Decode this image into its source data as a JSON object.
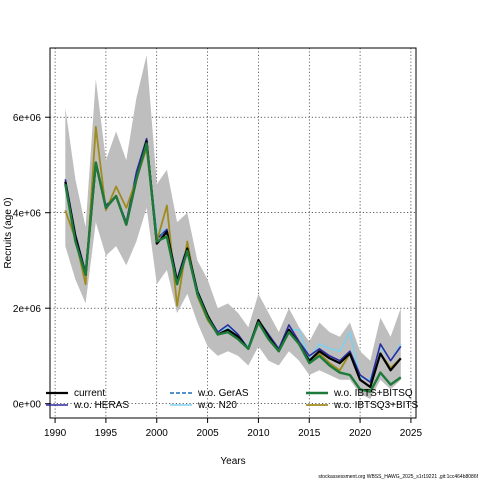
{
  "chart_data": {
    "type": "line",
    "ylabel": "Recruits (age 0)",
    "xlabel": "Years",
    "xlim": [
      1989.5,
      2025.5
    ],
    "ylim": [
      -300000,
      7450000
    ],
    "x_ticks": [
      1990,
      1995,
      2000,
      2005,
      2010,
      2015,
      2020,
      2025
    ],
    "y_ticks": [
      {
        "value": 0,
        "label": "0e+00"
      },
      {
        "value": 2000000,
        "label": "2e+06"
      },
      {
        "value": 4000000,
        "label": "4e+06"
      },
      {
        "value": 6000000,
        "label": "6e+06"
      }
    ],
    "grid": true,
    "legend_position": "bottom",
    "x": [
      1991,
      1992,
      1993,
      1994,
      1995,
      1996,
      1997,
      1998,
      1999,
      2000,
      2001,
      2002,
      2003,
      2004,
      2005,
      2006,
      2007,
      2008,
      2009,
      2010,
      2011,
      2012,
      2013,
      2014,
      2015,
      2016,
      2017,
      2018,
      2019,
      2020,
      2021,
      2022,
      2023,
      2024
    ],
    "confidence_band": {
      "color": "#bebebe",
      "upper": [
        6200000,
        4700000,
        3700000,
        6800000,
        5100000,
        5700000,
        5100000,
        6400000,
        7300000,
        4600000,
        4900000,
        3800000,
        4000000,
        3000000,
        2600000,
        2000000,
        2100000,
        1900000,
        1600000,
        2300000,
        1900000,
        1500000,
        2000000,
        1600000,
        1300000,
        1700000,
        1500000,
        1400000,
        1700000,
        1100000,
        900000,
        1800000,
        1400000,
        2000000
      ],
      "lower": [
        3300000,
        2600000,
        2100000,
        3800000,
        3100000,
        3300000,
        2900000,
        3400000,
        4100000,
        2500000,
        2800000,
        1900000,
        2300000,
        1700000,
        1200000,
        1000000,
        1100000,
        1000000,
        800000,
        1200000,
        900000,
        800000,
        1100000,
        900000,
        600000,
        700000,
        600000,
        500000,
        500000,
        200000,
        100000,
        500000,
        300000,
        500000
      ]
    },
    "series": [
      {
        "name": "current",
        "color": "#000000",
        "dash": "",
        "width": 2.2,
        "values": [
          4650000,
          3500000,
          2700000,
          5050000,
          4100000,
          4350000,
          3750000,
          4700000,
          5500000,
          3350000,
          3600000,
          2550000,
          3250000,
          2350000,
          1850000,
          1450000,
          1550000,
          1400000,
          1150000,
          1750000,
          1400000,
          1100000,
          1550000,
          1250000,
          900000,
          1100000,
          950000,
          850000,
          1050000,
          500000,
          350000,
          1050000,
          700000,
          950000
        ]
      },
      {
        "name": "w.o. HERAS",
        "color": "#2b2b9e",
        "dash": "",
        "width": 1.6,
        "values": [
          4700000,
          3550000,
          2750000,
          5000000,
          4150000,
          4350000,
          3800000,
          4850000,
          5550000,
          3450000,
          3650000,
          2600000,
          3300000,
          2350000,
          1850000,
          1500000,
          1650000,
          1450000,
          1150000,
          1750000,
          1450000,
          1150000,
          1650000,
          1300000,
          1000000,
          1150000,
          1000000,
          900000,
          1100000,
          600000,
          450000,
          1250000,
          900000,
          1200000
        ]
      },
      {
        "name": "w.o. GerAS",
        "color": "#1f6eb4",
        "dash": "4,2",
        "width": 1.6,
        "values": [
          4650000,
          3500000,
          2700000,
          5050000,
          4100000,
          4350000,
          3750000,
          4700000,
          5500000,
          3500000,
          3600000,
          2550000,
          3250000,
          2350000,
          1850000,
          1450000,
          1550000,
          1400000,
          1150000,
          1750000,
          1400000,
          1100000,
          1550000,
          1250000,
          900000,
          1100000,
          950000,
          850000,
          1050000,
          500000,
          350000,
          1050000,
          700000,
          950000
        ]
      },
      {
        "name": "w.o. N20",
        "color": "#7fd0ef",
        "dash": "",
        "width": 1.6,
        "values": [
          4600000,
          3500000,
          2700000,
          5000000,
          4100000,
          4350000,
          3750000,
          4700000,
          5400000,
          3600000,
          3650000,
          2550000,
          3250000,
          2400000,
          1850000,
          1500000,
          1600000,
          1400000,
          1200000,
          1750000,
          1400000,
          1150000,
          1550000,
          1550000,
          950000,
          1250000,
          1150000,
          1100000,
          1500000,
          550000,
          500000,
          1200000,
          900000,
          1250000
        ]
      },
      {
        "name": "w.o. IBTS+BITSQ",
        "color": "#1e7a3a",
        "dash": "",
        "width": 2.4,
        "values": [
          4600000,
          3400000,
          2700000,
          5050000,
          4100000,
          4350000,
          3750000,
          4700000,
          5450000,
          3400000,
          3500000,
          2500000,
          3200000,
          2300000,
          1800000,
          1450000,
          1500000,
          1350000,
          1150000,
          1700000,
          1350000,
          1100000,
          1500000,
          1250000,
          850000,
          1000000,
          800000,
          650000,
          600000,
          300000,
          250000,
          650000,
          400000,
          550000
        ]
      },
      {
        "name": "w.o. IBTSQ3+BITS",
        "color": "#a08c1e",
        "dash": "",
        "width": 1.8,
        "values": [
          4050000,
          3450000,
          2500000,
          5800000,
          4050000,
          4550000,
          4100000,
          4700000,
          5350000,
          3400000,
          4150000,
          2050000,
          3400000,
          2250000,
          1750000,
          1450000,
          1550000,
          1400000,
          1150000,
          1700000,
          1400000,
          1100000,
          1550000,
          1250000,
          900000,
          1050000,
          850000,
          700000,
          1050000,
          500000,
          350000,
          1050000,
          750000,
          950000
        ]
      }
    ]
  },
  "footer_text": "stockassessment.org WBSS_HAWG_2025_s1r19221 ,git:1cc464b8086f"
}
